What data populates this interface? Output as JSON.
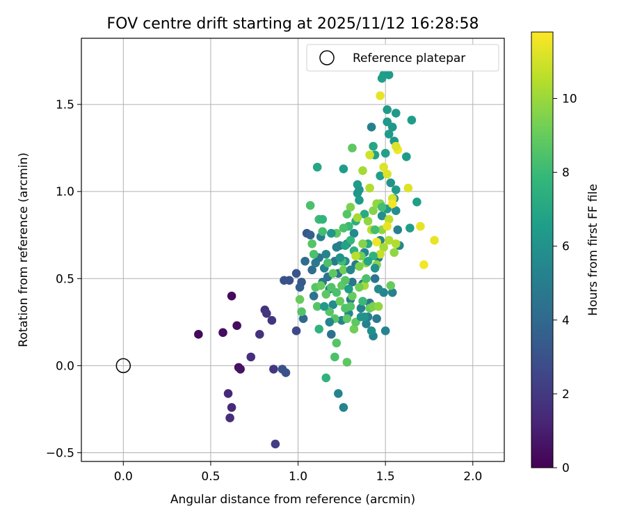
{
  "chart_data": {
    "type": "scatter",
    "title": "FOV centre drift starting at 2025/11/12 16:28:58",
    "xlabel": "Angular distance from reference (arcmin)",
    "ylabel": "Rotation from reference (arcmin)",
    "xlim": [
      -0.24,
      2.18
    ],
    "ylim": [
      -0.55,
      1.88
    ],
    "xticks": [
      0.0,
      0.5,
      1.0,
      1.5,
      2.0
    ],
    "xtick_labels": [
      "0.0",
      "0.5",
      "1.0",
      "1.5",
      "2.0"
    ],
    "yticks": [
      -0.5,
      0.0,
      0.5,
      1.0,
      1.5
    ],
    "ytick_labels": [
      "−0.5",
      "0.0",
      "0.5",
      "1.0",
      "1.5"
    ],
    "grid": true,
    "legend": {
      "position": "top-right",
      "label": "Reference platepar"
    },
    "reference_point": {
      "x": 0.0,
      "y": 0.0
    },
    "colorbar": {
      "label": "Hours from first FF file",
      "min": 0,
      "max": 11.8,
      "ticks": [
        0,
        2,
        4,
        6,
        8,
        10
      ],
      "tick_labels": [
        "0",
        "2",
        "4",
        "6",
        "8",
        "10"
      ],
      "colormap": [
        "#440154",
        "#482878",
        "#3e4989",
        "#31688e",
        "#26828e",
        "#1f9e89",
        "#35b779",
        "#6ece58",
        "#b5de2b",
        "#fde725"
      ]
    },
    "points": [
      {
        "x": 0.43,
        "y": 0.18,
        "h": 0.3
      },
      {
        "x": 0.57,
        "y": 0.19,
        "h": 0.4
      },
      {
        "x": 0.62,
        "y": 0.4,
        "h": 0.3
      },
      {
        "x": 0.65,
        "y": 0.23,
        "h": 0.4
      },
      {
        "x": 0.66,
        "y": -0.01,
        "h": 0.5
      },
      {
        "x": 0.67,
        "y": -0.02,
        "h": 0.6
      },
      {
        "x": 0.6,
        "y": -0.16,
        "h": 1.3
      },
      {
        "x": 0.62,
        "y": -0.24,
        "h": 1.4
      },
      {
        "x": 0.61,
        "y": -0.3,
        "h": 1.5
      },
      {
        "x": 0.73,
        "y": 0.05,
        "h": 1.6
      },
      {
        "x": 0.78,
        "y": 0.18,
        "h": 1.7
      },
      {
        "x": 0.81,
        "y": 0.32,
        "h": 1.8
      },
      {
        "x": 0.82,
        "y": 0.3,
        "h": 1.9
      },
      {
        "x": 0.85,
        "y": 0.26,
        "h": 1.8
      },
      {
        "x": 0.86,
        "y": -0.02,
        "h": 1.9
      },
      {
        "x": 0.87,
        "y": -0.45,
        "h": 2.2
      },
      {
        "x": 0.91,
        "y": -0.02,
        "h": 3.0
      },
      {
        "x": 0.93,
        "y": -0.04,
        "h": 3.0
      },
      {
        "x": 0.92,
        "y": 0.49,
        "h": 3.0
      },
      {
        "x": 0.95,
        "y": 0.49,
        "h": 3.0
      },
      {
        "x": 0.99,
        "y": 0.2,
        "h": 2.6
      },
      {
        "x": 0.99,
        "y": 0.53,
        "h": 3.1
      },
      {
        "x": 1.01,
        "y": 0.45,
        "h": 3.6
      },
      {
        "x": 1.02,
        "y": 0.48,
        "h": 3.4
      },
      {
        "x": 1.03,
        "y": 0.27,
        "h": 4.0
      },
      {
        "x": 1.04,
        "y": 0.6,
        "h": 4.2
      },
      {
        "x": 1.05,
        "y": 0.76,
        "h": 3.2
      },
      {
        "x": 1.07,
        "y": 0.75,
        "h": 3.6
      },
      {
        "x": 1.08,
        "y": 0.55,
        "h": 4.2
      },
      {
        "x": 1.09,
        "y": 0.4,
        "h": 4.5
      },
      {
        "x": 1.1,
        "y": 0.59,
        "h": 4.8
      },
      {
        "x": 1.11,
        "y": 1.14,
        "h": 7.0
      },
      {
        "x": 1.12,
        "y": 0.62,
        "h": 4.6
      },
      {
        "x": 1.13,
        "y": 0.74,
        "h": 5.0
      },
      {
        "x": 1.14,
        "y": 0.48,
        "h": 4.8
      },
      {
        "x": 1.15,
        "y": 0.56,
        "h": 5.2
      },
      {
        "x": 1.16,
        "y": 0.64,
        "h": 5.4
      },
      {
        "x": 1.17,
        "y": 0.51,
        "h": 4.5
      },
      {
        "x": 1.18,
        "y": 0.44,
        "h": 5.0
      },
      {
        "x": 1.19,
        "y": 0.18,
        "h": 4.4
      },
      {
        "x": 1.2,
        "y": 0.35,
        "h": 5.6
      },
      {
        "x": 1.21,
        "y": 0.6,
        "h": 4.8
      },
      {
        "x": 1.22,
        "y": 0.68,
        "h": 5.2
      },
      {
        "x": 1.23,
        "y": 0.53,
        "h": 4.6
      },
      {
        "x": 1.24,
        "y": 0.69,
        "h": 5.0
      },
      {
        "x": 1.25,
        "y": 0.26,
        "h": 5.3
      },
      {
        "x": 1.26,
        "y": 1.13,
        "h": 6.5
      },
      {
        "x": 1.27,
        "y": 0.6,
        "h": 5.8
      },
      {
        "x": 1.28,
        "y": 0.7,
        "h": 4.8
      },
      {
        "x": 1.29,
        "y": 0.3,
        "h": 5.4
      },
      {
        "x": 1.3,
        "y": 0.38,
        "h": 5.0
      },
      {
        "x": 1.31,
        "y": 0.48,
        "h": 4.6
      },
      {
        "x": 1.32,
        "y": 0.76,
        "h": 5.6
      },
      {
        "x": 1.33,
        "y": 0.58,
        "h": 4.8
      },
      {
        "x": 1.34,
        "y": 0.99,
        "h": 6.2
      },
      {
        "x": 1.35,
        "y": 0.95,
        "h": 6.4
      },
      {
        "x": 1.36,
        "y": 0.33,
        "h": 5.2
      },
      {
        "x": 1.37,
        "y": 0.47,
        "h": 5.0
      },
      {
        "x": 1.38,
        "y": 0.65,
        "h": 5.4
      },
      {
        "x": 1.39,
        "y": 0.24,
        "h": 5.2
      },
      {
        "x": 1.4,
        "y": 0.28,
        "h": 5.0
      },
      {
        "x": 1.41,
        "y": 0.36,
        "h": 4.8
      },
      {
        "x": 1.42,
        "y": 1.37,
        "h": 5.2
      },
      {
        "x": 1.43,
        "y": 0.17,
        "h": 5.3
      },
      {
        "x": 1.44,
        "y": 0.5,
        "h": 4.6
      },
      {
        "x": 1.45,
        "y": 0.27,
        "h": 4.8
      },
      {
        "x": 1.46,
        "y": 0.62,
        "h": 5.0
      },
      {
        "x": 1.47,
        "y": 0.72,
        "h": 5.4
      },
      {
        "x": 1.48,
        "y": 0.86,
        "h": 5.8
      },
      {
        "x": 1.49,
        "y": 0.42,
        "h": 5.4
      },
      {
        "x": 1.5,
        "y": 0.2,
        "h": 5.3
      },
      {
        "x": 1.51,
        "y": 0.9,
        "h": 6.4
      },
      {
        "x": 1.52,
        "y": 1.33,
        "h": 6.4
      },
      {
        "x": 1.53,
        "y": 1.05,
        "h": 6.0
      },
      {
        "x": 1.54,
        "y": 0.42,
        "h": 5.2
      },
      {
        "x": 1.55,
        "y": 0.96,
        "h": 5.6
      },
      {
        "x": 1.56,
        "y": 0.89,
        "h": 5.8
      },
      {
        "x": 1.57,
        "y": 0.78,
        "h": 5.2
      },
      {
        "x": 1.58,
        "y": 0.69,
        "h": 5.4
      },
      {
        "x": 1.62,
        "y": 1.2,
        "h": 6.4
      },
      {
        "x": 1.64,
        "y": 0.79,
        "h": 6.6
      },
      {
        "x": 1.65,
        "y": 1.41,
        "h": 6.5
      },
      {
        "x": 1.68,
        "y": 0.94,
        "h": 6.6
      },
      {
        "x": 1.54,
        "y": 1.37,
        "h": 6.2
      },
      {
        "x": 1.55,
        "y": 1.29,
        "h": 6.2
      },
      {
        "x": 1.56,
        "y": 1.45,
        "h": 6.3
      },
      {
        "x": 1.51,
        "y": 1.47,
        "h": 6.4
      },
      {
        "x": 1.51,
        "y": 1.4,
        "h": 6.3
      },
      {
        "x": 1.49,
        "y": 1.67,
        "h": 6.5
      },
      {
        "x": 1.52,
        "y": 1.67,
        "h": 6.4
      },
      {
        "x": 1.48,
        "y": 1.65,
        "h": 6.6
      },
      {
        "x": 1.56,
        "y": 1.01,
        "h": 6.4
      },
      {
        "x": 1.44,
        "y": 1.21,
        "h": 6.8
      },
      {
        "x": 1.47,
        "y": 1.09,
        "h": 6.6
      },
      {
        "x": 1.5,
        "y": 1.22,
        "h": 6.7
      },
      {
        "x": 1.43,
        "y": 1.26,
        "h": 7.0
      },
      {
        "x": 1.34,
        "y": 1.04,
        "h": 6.4
      },
      {
        "x": 1.35,
        "y": 1.01,
        "h": 6.2
      },
      {
        "x": 1.23,
        "y": -0.16,
        "h": 5.3
      },
      {
        "x": 1.26,
        "y": -0.24,
        "h": 5.4
      },
      {
        "x": 1.38,
        "y": 0.87,
        "h": 7.2
      },
      {
        "x": 1.4,
        "y": 0.7,
        "h": 7.2
      },
      {
        "x": 1.33,
        "y": 0.83,
        "h": 7.4
      },
      {
        "x": 1.32,
        "y": 0.66,
        "h": 7.5
      },
      {
        "x": 1.29,
        "y": 0.8,
        "h": 8.0
      },
      {
        "x": 1.3,
        "y": 0.72,
        "h": 7.8
      },
      {
        "x": 1.12,
        "y": 0.84,
        "h": 8.0
      },
      {
        "x": 1.14,
        "y": 0.84,
        "h": 7.7
      },
      {
        "x": 1.14,
        "y": 0.77,
        "h": 8.2
      },
      {
        "x": 1.09,
        "y": 0.64,
        "h": 8.4
      },
      {
        "x": 1.08,
        "y": 0.7,
        "h": 8.6
      },
      {
        "x": 1.07,
        "y": 0.92,
        "h": 8.4
      },
      {
        "x": 1.1,
        "y": 0.45,
        "h": 8.6
      },
      {
        "x": 1.11,
        "y": 0.34,
        "h": 8.6
      },
      {
        "x": 1.12,
        "y": 0.21,
        "h": 7.6
      },
      {
        "x": 1.02,
        "y": 0.31,
        "h": 8.6
      },
      {
        "x": 1.01,
        "y": 0.38,
        "h": 9.0
      },
      {
        "x": 1.16,
        "y": -0.07,
        "h": 7.6
      },
      {
        "x": 1.21,
        "y": 0.05,
        "h": 8.4
      },
      {
        "x": 1.22,
        "y": 0.13,
        "h": 8.6
      },
      {
        "x": 1.28,
        "y": 0.02,
        "h": 8.8
      },
      {
        "x": 1.18,
        "y": 0.31,
        "h": 8.6
      },
      {
        "x": 1.19,
        "y": 0.45,
        "h": 8.5
      },
      {
        "x": 1.2,
        "y": 0.53,
        "h": 8.8
      },
      {
        "x": 1.22,
        "y": 0.42,
        "h": 8.4
      },
      {
        "x": 1.24,
        "y": 0.37,
        "h": 9.0
      },
      {
        "x": 1.25,
        "y": 0.46,
        "h": 8.8
      },
      {
        "x": 1.26,
        "y": 0.55,
        "h": 9.2
      },
      {
        "x": 1.27,
        "y": 0.33,
        "h": 8.5
      },
      {
        "x": 1.28,
        "y": 0.27,
        "h": 8.8
      },
      {
        "x": 1.3,
        "y": 0.34,
        "h": 8.6
      },
      {
        "x": 1.31,
        "y": 0.4,
        "h": 9.0
      },
      {
        "x": 1.32,
        "y": 0.21,
        "h": 9.2
      },
      {
        "x": 1.33,
        "y": 0.25,
        "h": 8.8
      },
      {
        "x": 1.35,
        "y": 0.57,
        "h": 9.4
      },
      {
        "x": 1.36,
        "y": 0.63,
        "h": 9.2
      },
      {
        "x": 1.37,
        "y": 0.7,
        "h": 9.6
      },
      {
        "x": 1.38,
        "y": 0.46,
        "h": 10.2
      },
      {
        "x": 1.39,
        "y": 0.59,
        "h": 9.8
      },
      {
        "x": 1.41,
        "y": 0.33,
        "h": 9.0
      },
      {
        "x": 1.43,
        "y": 0.34,
        "h": 9.4
      },
      {
        "x": 1.45,
        "y": 0.58,
        "h": 9.6
      },
      {
        "x": 1.46,
        "y": 0.34,
        "h": 9.8
      },
      {
        "x": 1.47,
        "y": 0.93,
        "h": 9.4
      },
      {
        "x": 1.48,
        "y": 0.78,
        "h": 9.8
      },
      {
        "x": 1.49,
        "y": 0.68,
        "h": 10.2
      },
      {
        "x": 1.52,
        "y": 0.72,
        "h": 10.4
      },
      {
        "x": 1.53,
        "y": 0.46,
        "h": 9.0
      },
      {
        "x": 1.55,
        "y": 0.65,
        "h": 9.8
      },
      {
        "x": 1.56,
        "y": 0.7,
        "h": 10.4
      },
      {
        "x": 1.31,
        "y": 1.25,
        "h": 8.8
      },
      {
        "x": 1.3,
        "y": 0.91,
        "h": 9.4
      },
      {
        "x": 1.28,
        "y": 0.87,
        "h": 8.6
      },
      {
        "x": 1.26,
        "y": 0.79,
        "h": 8.4
      },
      {
        "x": 1.22,
        "y": 0.76,
        "h": 8.8
      },
      {
        "x": 1.37,
        "y": 1.12,
        "h": 10.2
      },
      {
        "x": 1.41,
        "y": 1.02,
        "h": 10.4
      },
      {
        "x": 1.43,
        "y": 0.89,
        "h": 9.6
      },
      {
        "x": 1.45,
        "y": 0.93,
        "h": 9.8
      },
      {
        "x": 1.41,
        "y": 1.21,
        "h": 11.0
      },
      {
        "x": 1.47,
        "y": 1.55,
        "h": 11.4
      },
      {
        "x": 1.51,
        "y": 1.1,
        "h": 11.2
      },
      {
        "x": 1.52,
        "y": 0.84,
        "h": 10.6
      },
      {
        "x": 1.54,
        "y": 0.96,
        "h": 11.0
      },
      {
        "x": 1.57,
        "y": 1.24,
        "h": 11.6
      },
      {
        "x": 1.56,
        "y": 1.26,
        "h": 11.2
      },
      {
        "x": 1.63,
        "y": 1.02,
        "h": 11.2
      },
      {
        "x": 1.7,
        "y": 0.8,
        "h": 11.4
      },
      {
        "x": 1.72,
        "y": 0.58,
        "h": 11.6
      },
      {
        "x": 1.78,
        "y": 0.72,
        "h": 11.4
      },
      {
        "x": 1.49,
        "y": 1.14,
        "h": 11.2
      },
      {
        "x": 1.51,
        "y": 0.8,
        "h": 11.4
      },
      {
        "x": 1.54,
        "y": 0.93,
        "h": 11.6
      },
      {
        "x": 1.45,
        "y": 0.71,
        "h": 11.5
      },
      {
        "x": 1.47,
        "y": 0.64,
        "h": 10.8
      },
      {
        "x": 1.42,
        "y": 0.78,
        "h": 10.6
      },
      {
        "x": 1.4,
        "y": 0.83,
        "h": 9.8
      },
      {
        "x": 1.34,
        "y": 0.85,
        "h": 10.2
      },
      {
        "x": 1.33,
        "y": 0.63,
        "h": 10.6
      },
      {
        "x": 1.21,
        "y": 0.27,
        "h": 8.6
      },
      {
        "x": 1.16,
        "y": 0.41,
        "h": 8.8
      },
      {
        "x": 1.13,
        "y": 0.46,
        "h": 9.0
      },
      {
        "x": 1.17,
        "y": 0.59,
        "h": 8.4
      },
      {
        "x": 1.25,
        "y": 0.6,
        "h": 8.2
      },
      {
        "x": 1.27,
        "y": 0.49,
        "h": 8.6
      },
      {
        "x": 1.35,
        "y": 0.45,
        "h": 9.2
      },
      {
        "x": 1.37,
        "y": 0.37,
        "h": 8.0
      },
      {
        "x": 1.39,
        "y": 0.5,
        "h": 8.4
      },
      {
        "x": 1.44,
        "y": 0.78,
        "h": 8.2
      },
      {
        "x": 1.43,
        "y": 0.63,
        "h": 7.6
      },
      {
        "x": 1.48,
        "y": 0.91,
        "h": 8.2
      },
      {
        "x": 1.15,
        "y": 0.34,
        "h": 6.4
      },
      {
        "x": 1.18,
        "y": 0.25,
        "h": 5.4
      },
      {
        "x": 1.24,
        "y": 0.62,
        "h": 6.0
      },
      {
        "x": 1.19,
        "y": 0.76,
        "h": 6.2
      },
      {
        "x": 1.36,
        "y": 0.28,
        "h": 6.2
      },
      {
        "x": 1.44,
        "y": 0.56,
        "h": 6.0
      },
      {
        "x": 1.38,
        "y": 0.28,
        "h": 6.0
      },
      {
        "x": 1.42,
        "y": 0.2,
        "h": 5.8
      },
      {
        "x": 1.46,
        "y": 0.44,
        "h": 5.6
      },
      {
        "x": 1.3,
        "y": 0.55,
        "h": 5.4
      },
      {
        "x": 1.29,
        "y": 0.44,
        "h": 6.4
      },
      {
        "x": 1.27,
        "y": 0.69,
        "h": 6.8
      },
      {
        "x": 1.4,
        "y": 0.6,
        "h": 7.0
      }
    ]
  }
}
